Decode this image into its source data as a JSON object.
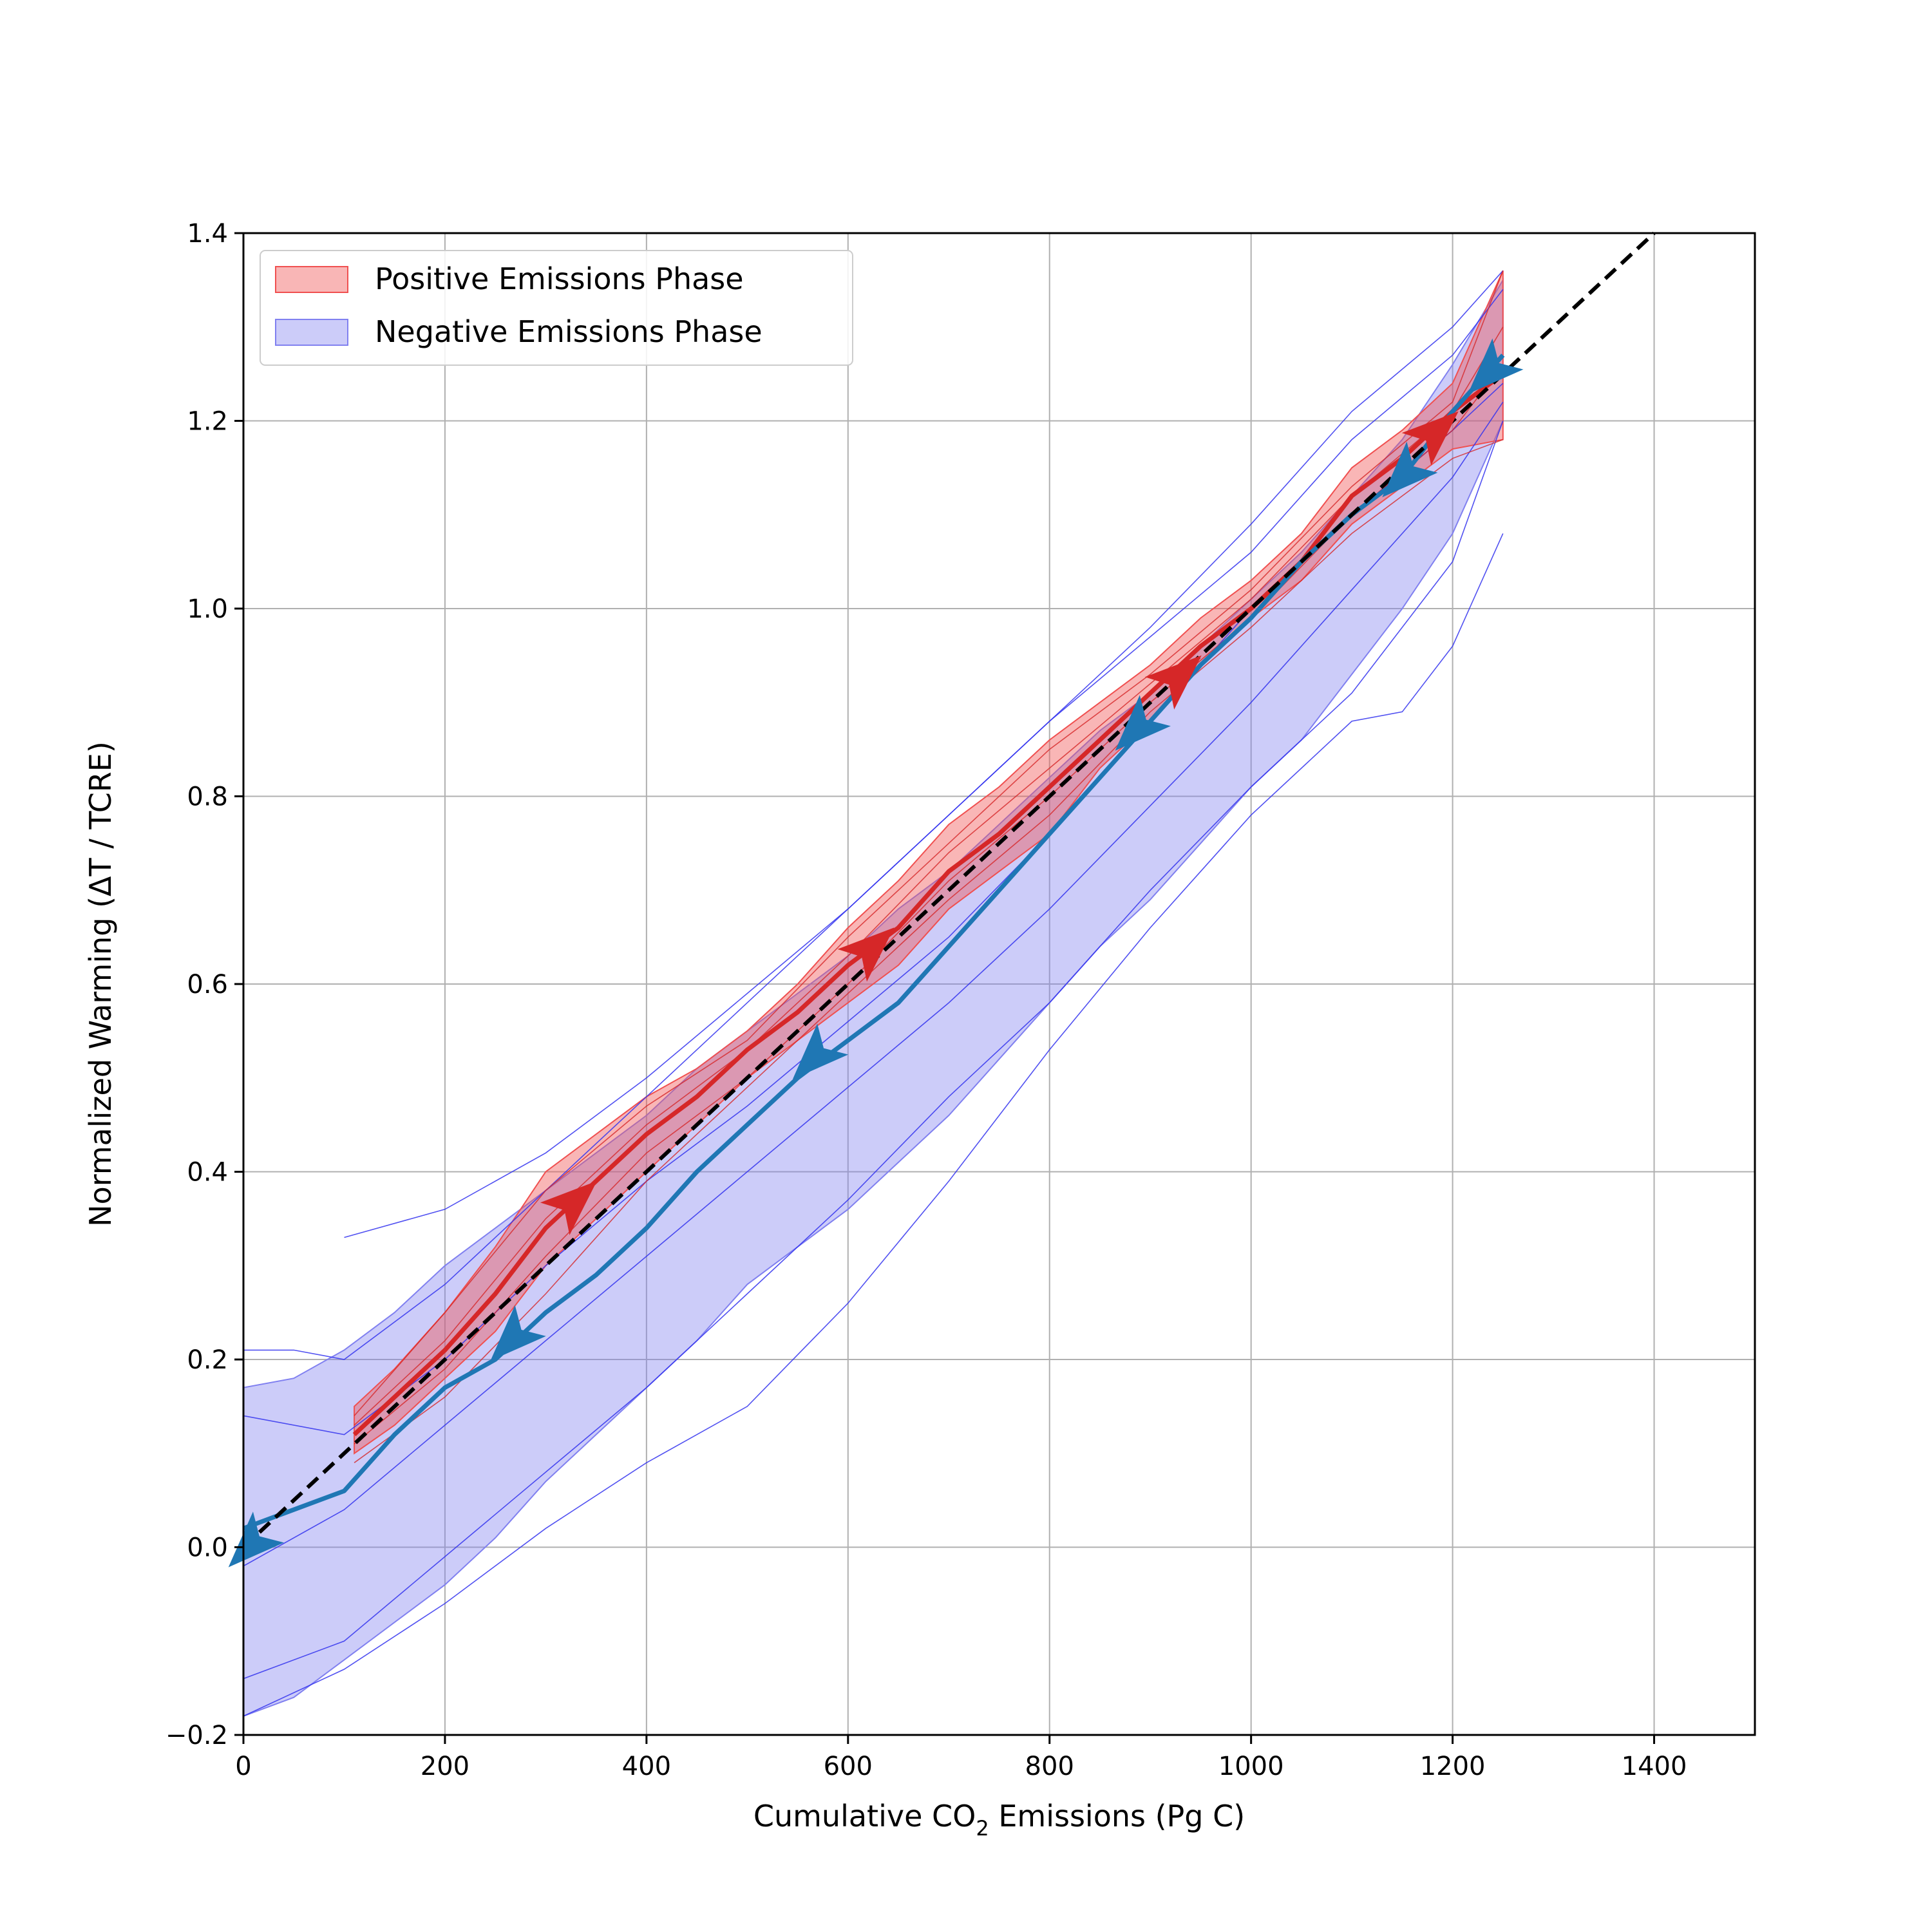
{
  "chart_data": {
    "type": "line",
    "xlabel": {
      "pre": "Cumulative CO",
      "sub": "2",
      "post": " Emissions (Pg C)"
    },
    "ylabel": "Normalized Warming (ΔT / TCRE)",
    "xlim": [
      0,
      1500
    ],
    "ylim": [
      -0.2,
      1.4
    ],
    "xticks": [
      0,
      200,
      400,
      600,
      800,
      1000,
      1200,
      1400
    ],
    "yticks": [
      -0.2,
      0.0,
      0.2,
      0.4,
      0.6,
      0.8,
      1.0,
      1.2,
      1.4
    ],
    "xtick_labels": [
      "0",
      "200",
      "400",
      "600",
      "800",
      "1000",
      "1200",
      "1400"
    ],
    "ytick_labels": [
      "−0.2",
      "0.0",
      "0.2",
      "0.4",
      "0.6",
      "0.8",
      "1.0",
      "1.2",
      "1.4"
    ],
    "grid": true,
    "legend_position": "top-left",
    "legend": [
      {
        "label": "Positive Emissions Phase",
        "color": "#ff9090"
      },
      {
        "label": "Negative Emissions Phase",
        "color": "#9f9ff5"
      }
    ],
    "colors": {
      "positive_fill": "#f05050",
      "positive_line": "#d62728",
      "negative_fill": "#8080f0",
      "negative_line": "#1f77b4",
      "member_line": "#3333ee",
      "reference": "#000000"
    },
    "reference_line": {
      "x": [
        0,
        1400
      ],
      "y": [
        0.0,
        1.4
      ]
    },
    "positive_band": {
      "x": [
        110,
        150,
        200,
        250,
        300,
        350,
        400,
        450,
        500,
        550,
        600,
        650,
        700,
        750,
        800,
        850,
        900,
        950,
        1000,
        1050,
        1100,
        1150,
        1200,
        1250
      ],
      "upper": [
        0.15,
        0.19,
        0.25,
        0.32,
        0.4,
        0.44,
        0.48,
        0.51,
        0.55,
        0.6,
        0.66,
        0.71,
        0.77,
        0.81,
        0.86,
        0.9,
        0.94,
        0.99,
        1.03,
        1.08,
        1.15,
        1.19,
        1.24,
        1.36
      ],
      "lower": [
        0.1,
        0.13,
        0.18,
        0.23,
        0.3,
        0.35,
        0.4,
        0.45,
        0.5,
        0.54,
        0.58,
        0.62,
        0.68,
        0.72,
        0.76,
        0.83,
        0.88,
        0.94,
        0.99,
        1.03,
        1.09,
        1.13,
        1.17,
        1.18
      ]
    },
    "negative_band": {
      "x": [
        0,
        50,
        100,
        150,
        200,
        250,
        300,
        350,
        400,
        450,
        500,
        550,
        600,
        650,
        700,
        750,
        800,
        850,
        900,
        950,
        1000,
        1050,
        1100,
        1150,
        1200,
        1250
      ],
      "upper": [
        0.17,
        0.18,
        0.21,
        0.25,
        0.3,
        0.34,
        0.38,
        0.42,
        0.46,
        0.51,
        0.55,
        0.59,
        0.63,
        0.68,
        0.72,
        0.77,
        0.82,
        0.87,
        0.91,
        0.96,
        1.01,
        1.06,
        1.12,
        1.18,
        1.26,
        1.35
      ],
      "lower": [
        -0.18,
        -0.16,
        -0.12,
        -0.08,
        -0.04,
        0.01,
        0.07,
        0.12,
        0.17,
        0.22,
        0.28,
        0.32,
        0.36,
        0.41,
        0.46,
        0.52,
        0.58,
        0.64,
        0.69,
        0.75,
        0.81,
        0.86,
        0.93,
        1.0,
        1.08,
        1.2
      ]
    },
    "series": [
      {
        "name": "Positive Emissions Phase",
        "x": [
          110,
          150,
          200,
          250,
          300,
          350,
          400,
          450,
          500,
          550,
          600,
          650,
          700,
          750,
          800,
          850,
          900,
          950,
          1000,
          1050,
          1100,
          1150,
          1200,
          1250
        ],
        "y": [
          0.12,
          0.16,
          0.21,
          0.27,
          0.34,
          0.39,
          0.44,
          0.48,
          0.53,
          0.57,
          0.62,
          0.66,
          0.72,
          0.76,
          0.81,
          0.86,
          0.91,
          0.96,
          1.0,
          1.05,
          1.12,
          1.16,
          1.21,
          1.25
        ]
      },
      {
        "name": "Negative Emissions Phase",
        "x": [
          1250,
          1200,
          1150,
          1100,
          1050,
          1000,
          950,
          900,
          850,
          800,
          750,
          700,
          650,
          600,
          550,
          500,
          450,
          400,
          350,
          300,
          250,
          200,
          150,
          100,
          50,
          0
        ],
        "y": [
          1.27,
          1.21,
          1.14,
          1.1,
          1.05,
          0.99,
          0.94,
          0.88,
          0.82,
          0.76,
          0.7,
          0.64,
          0.58,
          0.54,
          0.5,
          0.45,
          0.4,
          0.34,
          0.29,
          0.25,
          0.2,
          0.17,
          0.12,
          0.06,
          0.04,
          0.02
        ]
      }
    ],
    "member_lines_positive": [
      {
        "x": [
          110,
          200,
          300,
          400,
          500,
          600,
          700,
          800,
          900,
          1000,
          1100,
          1200,
          1250
        ],
        "y": [
          0.09,
          0.16,
          0.27,
          0.39,
          0.49,
          0.59,
          0.69,
          0.78,
          0.89,
          0.98,
          1.08,
          1.16,
          1.18
        ]
      },
      {
        "x": [
          110,
          200,
          300,
          400,
          500,
          600,
          700,
          800,
          900,
          1000,
          1100,
          1200,
          1250
        ],
        "y": [
          0.14,
          0.25,
          0.38,
          0.47,
          0.54,
          0.65,
          0.75,
          0.85,
          0.93,
          1.02,
          1.13,
          1.22,
          1.36
        ]
      },
      {
        "x": [
          110,
          200,
          300,
          400,
          500,
          600,
          700,
          800,
          900,
          1000,
          1100,
          1200,
          1250
        ],
        "y": [
          0.11,
          0.19,
          0.31,
          0.42,
          0.5,
          0.6,
          0.71,
          0.8,
          0.9,
          0.99,
          1.1,
          1.19,
          1.26
        ]
      },
      {
        "x": [
          110,
          200,
          300,
          400,
          500,
          600,
          700,
          800,
          900,
          1000,
          1100,
          1200,
          1250
        ],
        "y": [
          0.13,
          0.22,
          0.35,
          0.45,
          0.53,
          0.63,
          0.74,
          0.83,
          0.92,
          1.01,
          1.12,
          1.21,
          1.3
        ]
      }
    ],
    "member_lines_negative": [
      {
        "x": [
          0,
          50,
          100,
          200,
          300,
          400,
          500,
          600,
          700,
          800,
          900,
          1000,
          1100,
          1200,
          1250
        ],
        "y": [
          0.21,
          0.21,
          0.2,
          0.28,
          0.38,
          0.48,
          0.58,
          0.68,
          0.78,
          0.88,
          0.97,
          1.06,
          1.18,
          1.27,
          1.34
        ]
      },
      {
        "x": [
          100,
          200,
          300,
          400,
          500,
          600,
          700,
          800,
          900,
          1000,
          1100,
          1200,
          1250
        ],
        "y": [
          0.33,
          0.36,
          0.42,
          0.5,
          0.59,
          0.68,
          0.78,
          0.88,
          0.98,
          1.09,
          1.21,
          1.3,
          1.36
        ]
      },
      {
        "x": [
          0,
          100,
          200,
          300,
          400,
          500,
          600,
          700,
          800,
          900,
          1000,
          1100,
          1150,
          1200,
          1250
        ],
        "y": [
          -0.18,
          -0.13,
          -0.06,
          0.02,
          0.09,
          0.15,
          0.26,
          0.39,
          0.53,
          0.66,
          0.78,
          0.88,
          0.89,
          0.96,
          1.08
        ]
      },
      {
        "x": [
          0,
          100,
          200,
          300,
          400,
          500,
          600,
          700,
          800,
          900,
          1000,
          1100,
          1200,
          1250
        ],
        "y": [
          -0.14,
          -0.1,
          -0.01,
          0.08,
          0.17,
          0.27,
          0.37,
          0.48,
          0.58,
          0.7,
          0.81,
          0.91,
          1.05,
          1.2
        ]
      },
      {
        "x": [
          0,
          100,
          200,
          300,
          400,
          500,
          600,
          700,
          800,
          900,
          1000,
          1100,
          1200,
          1250
        ],
        "y": [
          0.14,
          0.12,
          0.2,
          0.3,
          0.39,
          0.47,
          0.56,
          0.65,
          0.76,
          0.88,
          1.0,
          1.1,
          1.19,
          1.24
        ]
      },
      {
        "x": [
          0,
          100,
          200,
          300,
          400,
          500,
          600,
          700,
          800,
          900,
          1000,
          1100,
          1200,
          1250
        ],
        "y": [
          -0.02,
          0.04,
          0.13,
          0.22,
          0.31,
          0.4,
          0.49,
          0.58,
          0.68,
          0.79,
          0.9,
          1.02,
          1.14,
          1.22
        ]
      }
    ],
    "arrows_positive": [
      {
        "x": 330,
        "y": 0.37,
        "dx": 1,
        "dy": 0.9
      },
      {
        "x": 625,
        "y": 0.64,
        "dx": 1,
        "dy": 0.9
      },
      {
        "x": 930,
        "y": 0.93,
        "dx": 1,
        "dy": 0.9
      },
      {
        "x": 1185,
        "y": 1.19,
        "dx": 1,
        "dy": 0.9
      }
    ],
    "arrows_negative": [
      {
        "x": 1235,
        "y": 1.25,
        "dx": -1,
        "dy": -1
      },
      {
        "x": 1150,
        "y": 1.14,
        "dx": -1,
        "dy": -1
      },
      {
        "x": 885,
        "y": 0.87,
        "dx": -1,
        "dy": -1
      },
      {
        "x": 565,
        "y": 0.52,
        "dx": -1,
        "dy": -1
      },
      {
        "x": 265,
        "y": 0.22,
        "dx": -1,
        "dy": -1
      },
      {
        "x": 5,
        "y": 0.0,
        "dx": -1,
        "dy": -1
      }
    ]
  }
}
